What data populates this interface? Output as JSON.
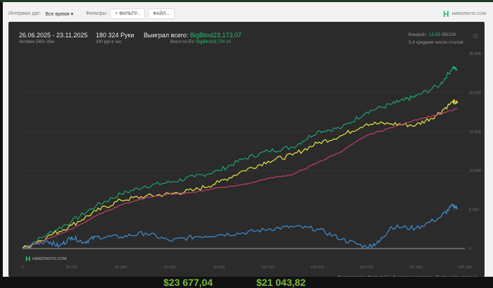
{
  "toolbar": {
    "interval_label": "Интервал дат:",
    "interval_value": "Все время",
    "filters_label": "Фильтры:",
    "filter_button": "ФИЛЬТР...",
    "file_button": "ФАЙЛ..."
  },
  "brand": "HAND2NOTE.COM",
  "summary": {
    "date_range": "26.06.2025 - 23.11.2025",
    "active": "Активен 545ч 35м",
    "hands": "180 324 Руки",
    "hands_rate": "330 рук в час",
    "won_label": "Выиграл всего:",
    "won_value": "BigBlind23,173.07",
    "ev_label": "Всего по EV:",
    "ev_value": "BigBlind18,734.14",
    "vpip_label": "Винрейт:",
    "vpip_value": "12.85",
    "vpip_unit": "бб/100",
    "tables": "5.4 среднее число столов"
  },
  "bottom_values": [
    "$23 677,04",
    "$21 043,82"
  ],
  "chart_data": {
    "type": "line",
    "xlim": [
      0,
      180000
    ],
    "ylim": [
      0,
      25000
    ],
    "x_ticks": [
      "0",
      "20 000",
      "40 000",
      "60 000",
      "80 000",
      "100 000",
      "120 000",
      "140 000",
      "160 000",
      "180 000"
    ],
    "y_ticks": [
      "0",
      "5 000",
      "10 000",
      "15 000",
      "20 000",
      "25 000"
    ],
    "legend_position": "bottom-right",
    "series": [
      {
        "name": "Выиграл всего",
        "color": "#1fa36a",
        "points": [
          [
            0,
            0
          ],
          [
            10000,
            1800
          ],
          [
            20000,
            3500
          ],
          [
            30000,
            5500
          ],
          [
            40000,
            7000
          ],
          [
            50000,
            8000
          ],
          [
            60000,
            8500
          ],
          [
            70000,
            9200
          ],
          [
            80000,
            10000
          ],
          [
            90000,
            11500
          ],
          [
            100000,
            12500
          ],
          [
            110000,
            13000
          ],
          [
            120000,
            15000
          ],
          [
            130000,
            15500
          ],
          [
            140000,
            17500
          ],
          [
            150000,
            18500
          ],
          [
            155000,
            19000
          ],
          [
            160000,
            19500
          ],
          [
            170000,
            21000
          ],
          [
            175000,
            23200
          ],
          [
            177000,
            23000
          ]
        ]
      },
      {
        "name": "Всего по EV",
        "color": "#e6e640",
        "points": [
          [
            0,
            0
          ],
          [
            10000,
            1500
          ],
          [
            20000,
            3000
          ],
          [
            30000,
            4800
          ],
          [
            40000,
            6200
          ],
          [
            50000,
            6700
          ],
          [
            60000,
            7000
          ],
          [
            70000,
            7500
          ],
          [
            80000,
            8500
          ],
          [
            90000,
            10000
          ],
          [
            100000,
            11200
          ],
          [
            110000,
            12000
          ],
          [
            120000,
            13500
          ],
          [
            130000,
            14500
          ],
          [
            140000,
            16000
          ],
          [
            150000,
            16000
          ],
          [
            160000,
            15800
          ],
          [
            168000,
            17000
          ],
          [
            175000,
            18800
          ],
          [
            177000,
            18600
          ]
        ]
      },
      {
        "name": "Выиграл на шоудауне",
        "color": "#3d8fd6",
        "points": [
          [
            0,
            0
          ],
          [
            10000,
            1000
          ],
          [
            15000,
            300
          ],
          [
            20000,
            1500
          ],
          [
            25000,
            800
          ],
          [
            30000,
            1500
          ],
          [
            40000,
            1500
          ],
          [
            50000,
            2000
          ],
          [
            60000,
            1000
          ],
          [
            70000,
            1500
          ],
          [
            80000,
            1800
          ],
          [
            90000,
            2000
          ],
          [
            100000,
            2500
          ],
          [
            110000,
            2800
          ],
          [
            120000,
            2500
          ],
          [
            130000,
            1200
          ],
          [
            140000,
            200
          ],
          [
            145000,
            800
          ],
          [
            150000,
            2800
          ],
          [
            160000,
            2600
          ],
          [
            170000,
            4000
          ],
          [
            175000,
            5500
          ],
          [
            177000,
            5200
          ]
        ]
      },
      {
        "name": "Выиграл без шоудауна",
        "color": "#c0406a",
        "points": [
          [
            0,
            0
          ],
          [
            10000,
            1200
          ],
          [
            20000,
            2500
          ],
          [
            30000,
            4200
          ],
          [
            40000,
            5600
          ],
          [
            50000,
            6500
          ],
          [
            60000,
            7000
          ],
          [
            70000,
            7200
          ],
          [
            80000,
            7800
          ],
          [
            90000,
            8200
          ],
          [
            100000,
            9000
          ],
          [
            110000,
            9500
          ],
          [
            120000,
            11000
          ],
          [
            130000,
            12500
          ],
          [
            140000,
            14500
          ],
          [
            150000,
            15500
          ],
          [
            160000,
            16500
          ],
          [
            170000,
            17200
          ],
          [
            177000,
            18000
          ]
        ]
      }
    ]
  }
}
